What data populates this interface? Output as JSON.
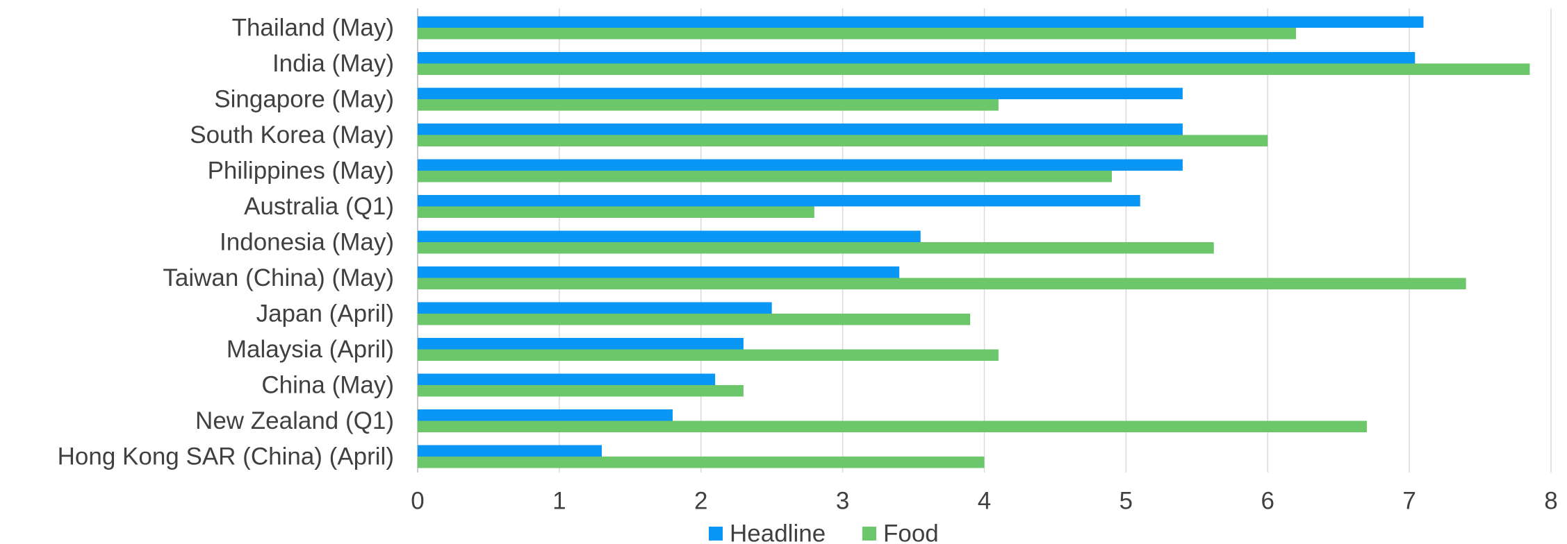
{
  "chart_data": {
    "type": "bar",
    "orientation": "horizontal",
    "categories": [
      "Thailand (May)",
      "India (May)",
      "Singapore (May)",
      "South Korea (May)",
      "Philippines (May)",
      "Australia (Q1)",
      "Indonesia (May)",
      "Taiwan (China) (May)",
      "Japan (April)",
      "Malaysia (April)",
      "China (May)",
      "New Zealand (Q1)",
      "Hong Kong SAR (China) (April)"
    ],
    "series": [
      {
        "name": "Headline",
        "color": "#0A96F5",
        "values": [
          7.1,
          7.04,
          5.4,
          5.4,
          5.4,
          5.1,
          3.55,
          3.4,
          2.5,
          2.3,
          2.1,
          1.8,
          1.3
        ]
      },
      {
        "name": "Food",
        "color": "#6CC76A",
        "values": [
          6.2,
          7.85,
          4.1,
          6.0,
          4.9,
          2.8,
          5.62,
          7.4,
          3.9,
          4.1,
          2.3,
          6.7,
          4.0
        ]
      }
    ],
    "xlim": [
      0,
      8
    ],
    "x_ticks": [
      "0",
      "1",
      "2",
      "3",
      "4",
      "5",
      "6",
      "7",
      "8"
    ],
    "grid": "vertical",
    "legend_position": "bottom",
    "title": "",
    "xlabel": "",
    "ylabel": ""
  }
}
